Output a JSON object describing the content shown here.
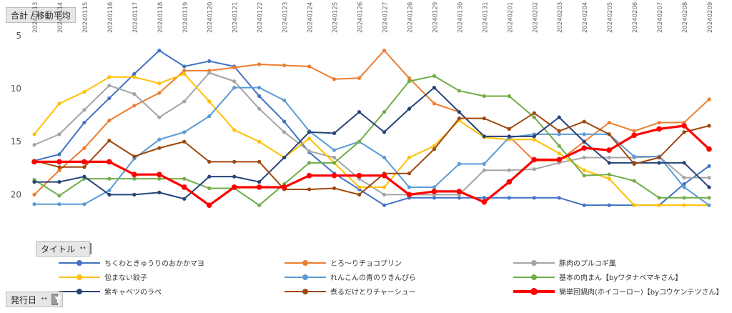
{
  "field_buttons": {
    "value_field": "合計 / 移動平均",
    "series_field": "タイトル",
    "axis_field": "発行日",
    "dots": "••"
  },
  "chart_data": {
    "type": "line",
    "y_axis": {
      "ylim": [
        5,
        22
      ],
      "ticks": [
        5,
        10,
        15,
        20
      ],
      "inverted": true,
      "grid": false
    },
    "categories": [
      "20240113",
      "20240114",
      "20240115",
      "20240116",
      "20240117",
      "20240118",
      "20240119",
      "20240120",
      "20240121",
      "20240122",
      "20240123",
      "20240124",
      "20240125",
      "20240126",
      "20240127",
      "20240128",
      "20240129",
      "20240130",
      "20240131",
      "20240201",
      "20240202",
      "20240203",
      "20240204",
      "20240205",
      "20240206",
      "20240207",
      "20240208",
      "20240209"
    ],
    "series": [
      {
        "name": "ちくわときゅうりのおかかマヨ",
        "color": "#4472C4",
        "values": [
          16.8,
          16.2,
          13.2,
          10.9,
          8.6,
          6.4,
          7.9,
          7.4,
          7.9,
          10.7,
          13.1,
          16.0,
          18.0,
          19.5,
          21.0,
          20.3,
          20.3,
          20.3,
          20.3,
          20.3,
          20.3,
          20.3,
          21.0,
          21.0,
          21.0,
          21.0,
          19.0,
          17.3
        ]
      },
      {
        "name": "とろ〜りチョコプリン",
        "color": "#ED7D31",
        "values": [
          20.0,
          17.7,
          15.6,
          13.0,
          11.6,
          10.4,
          8.3,
          8.3,
          8.0,
          7.7,
          7.8,
          7.9,
          9.1,
          9.0,
          6.4,
          9.0,
          11.4,
          12.2,
          14.5,
          14.5,
          16.8,
          16.8,
          15.0,
          13.2,
          14.0,
          13.2,
          13.2,
          11.0
        ]
      },
      {
        "name": "豚肉のプルコギ風",
        "color": "#A5A5A5",
        "values": [
          15.3,
          14.3,
          12.0,
          9.7,
          10.5,
          12.7,
          11.2,
          8.5,
          9.3,
          11.9,
          14.1,
          15.9,
          16.5,
          18.5,
          20.0,
          20.0,
          20.0,
          20.0,
          17.7,
          17.7,
          17.6,
          17.0,
          16.5,
          16.5,
          16.5,
          16.4,
          18.4,
          18.4
        ]
      },
      {
        "name": "包まない餃子",
        "color": "#FFC000",
        "values": [
          14.3,
          11.4,
          10.3,
          8.9,
          8.9,
          9.5,
          8.6,
          11.2,
          13.9,
          15.0,
          16.5,
          14.7,
          17.0,
          19.3,
          19.3,
          16.5,
          15.4,
          13.0,
          14.6,
          14.8,
          14.8,
          16.1,
          17.7,
          18.5,
          21.0,
          21.0,
          21.0,
          21.0
        ]
      },
      {
        "name": "れんこんの青のりきんぴら",
        "color": "#5B9BD5",
        "values": [
          20.9,
          20.9,
          20.9,
          19.6,
          16.6,
          14.8,
          14.1,
          12.6,
          9.9,
          9.9,
          11.1,
          14.0,
          15.8,
          15.0,
          16.5,
          19.3,
          19.3,
          17.1,
          17.1,
          14.6,
          14.3,
          14.3,
          14.3,
          14.3,
          16.4,
          16.4,
          19.3,
          21.0
        ]
      },
      {
        "name": "基本の肉まん【byワタナベマキさん】",
        "color": "#70AD47",
        "values": [
          18.6,
          20.1,
          18.5,
          18.5,
          18.5,
          18.5,
          18.5,
          19.4,
          19.4,
          21.0,
          19.0,
          17.0,
          17.0,
          15.0,
          12.2,
          9.3,
          8.8,
          10.2,
          10.7,
          10.7,
          12.7,
          15.4,
          18.2,
          18.1,
          18.7,
          20.3,
          20.3,
          20.3
        ]
      },
      {
        "name": "紫キャベツのラペ",
        "color": "#264478",
        "values": [
          18.8,
          18.8,
          18.3,
          20.0,
          20.0,
          19.8,
          20.4,
          18.3,
          18.3,
          18.8,
          16.5,
          14.1,
          14.2,
          12.2,
          14.1,
          11.9,
          9.9,
          12.2,
          14.5,
          14.5,
          14.5,
          12.7,
          15.0,
          17.0,
          17.0,
          17.0,
          17.0,
          19.3
        ]
      },
      {
        "name": "煮るだけとりチャーシュー",
        "color": "#9E480E",
        "values": [
          16.8,
          17.4,
          17.4,
          14.9,
          16.4,
          15.6,
          15.0,
          16.9,
          16.9,
          16.9,
          19.5,
          19.5,
          19.4,
          20.0,
          18.0,
          18.0,
          15.7,
          12.8,
          12.8,
          13.8,
          12.3,
          14.0,
          13.1,
          14.3,
          17.1,
          16.5,
          14.1,
          13.5
        ]
      },
      {
        "name": "簡単回鍋肉(ホイコーロー)【byコウケンテツさん】",
        "color": "#FF0000",
        "thick": true,
        "values": [
          16.9,
          16.9,
          16.9,
          16.9,
          18.1,
          18.1,
          19.3,
          21.0,
          19.3,
          19.3,
          19.3,
          18.2,
          18.2,
          18.2,
          18.2,
          20.0,
          19.7,
          19.7,
          20.7,
          18.8,
          16.7,
          16.7,
          15.6,
          15.8,
          14.4,
          13.8,
          13.5,
          15.7
        ]
      }
    ]
  }
}
